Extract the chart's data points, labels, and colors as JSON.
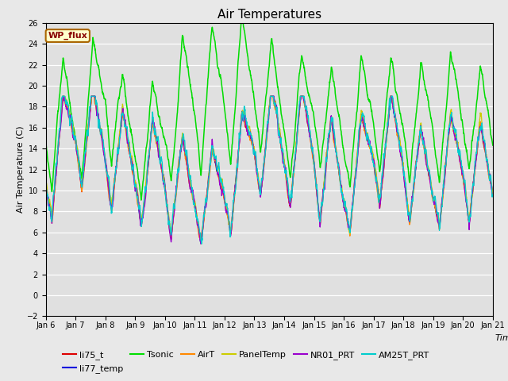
{
  "title": "Air Temperatures",
  "xlabel": "Time",
  "ylabel": "Air Temperature (C)",
  "ylim": [
    -2,
    26
  ],
  "xlim_days": 15,
  "x_tick_labels": [
    "Jan 6",
    "Jan 7",
    "Jan 8",
    "Jan 9",
    "Jan 10",
    "Jan 11",
    "Jan 12",
    "Jan 13",
    "Jan 14",
    "Jan 15",
    "Jan 16",
    "Jan 17",
    "Jan 18",
    "Jan 19",
    "Jan 20",
    "Jan 21"
  ],
  "wp_flux_label": "WP_flux",
  "wp_flux_bg": "#ffffcc",
  "wp_flux_border": "#aa6600",
  "wp_flux_text_color": "#880000",
  "series": [
    {
      "label": "li75_t",
      "color": "#dd0000",
      "lw": 0.9
    },
    {
      "label": "li77_temp",
      "color": "#0000dd",
      "lw": 0.9
    },
    {
      "label": "Tsonic",
      "color": "#00dd00",
      "lw": 1.1
    },
    {
      "label": "AirT",
      "color": "#ff8800",
      "lw": 0.9
    },
    {
      "label": "PanelTemp",
      "color": "#cccc00",
      "lw": 0.9
    },
    {
      "label": "NR01_PRT",
      "color": "#9900cc",
      "lw": 0.9
    },
    {
      "label": "AM25T_PRT",
      "color": "#00cccc",
      "lw": 0.9
    }
  ],
  "fig_bg_color": "#e8e8e8",
  "plot_bg_color": "#e0e0e0",
  "grid_color": "#ffffff",
  "title_fontsize": 11,
  "axis_label_fontsize": 8,
  "tick_fontsize": 7,
  "legend_fontsize": 8,
  "n_points": 2160,
  "y_ticks": [
    -2,
    0,
    2,
    4,
    6,
    8,
    10,
    12,
    14,
    16,
    18,
    20,
    22,
    24,
    26
  ]
}
